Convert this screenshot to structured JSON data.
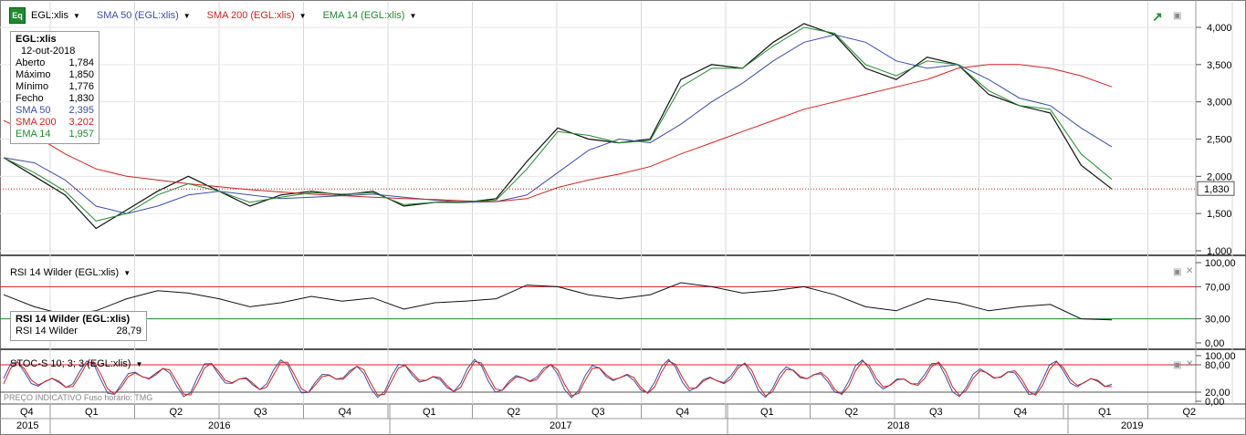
{
  "header": {
    "eq_label": "Eq",
    "symbol": "EGL:xlis",
    "sma50": "SMA 50 (EGL:xlis)",
    "sma200": "SMA 200 (EGL:xlis)",
    "ema14": "EMA 14 (EGL:xlis)",
    "colors": {
      "sma50": "#3b4fa3",
      "sma200": "#d42020",
      "ema14": "#1f8a2e"
    }
  },
  "info": {
    "title": "EGL:xlis",
    "date": "12-out-2018",
    "rows": [
      {
        "label": "Aberto",
        "value": "1,784",
        "color": "#000000"
      },
      {
        "label": "Máximo",
        "value": "1,850",
        "color": "#000000"
      },
      {
        "label": "Mínimo",
        "value": "1,776",
        "color": "#000000"
      },
      {
        "label": "Fecho",
        "value": "1,830",
        "color": "#000000"
      },
      {
        "label": "SMA 50",
        "value": "2,395",
        "color": "#3b4fa3"
      },
      {
        "label": "SMA 200",
        "value": "3,202",
        "color": "#d42020"
      },
      {
        "label": "EMA 14",
        "value": "1,957",
        "color": "#1f8a2e"
      }
    ]
  },
  "rsi": {
    "title": "RSI 14 Wilder (EGL:xlis)",
    "box_title": "RSI 14 Wilder (EGL:xlis)",
    "box_label": "RSI 14 Wilder",
    "box_value": "28,79"
  },
  "stoch": {
    "title": "STOC-S 10; 3; 3 (EGL:xlis)"
  },
  "footer": {
    "text": "PREÇO INDICATIVO   Fuso horário: TMG"
  },
  "chart_data": [
    {
      "type": "line",
      "name": "price",
      "x": [
        "2015-10",
        "2015-11",
        "2015-12",
        "2016-01",
        "2016-02",
        "2016-03",
        "2016-04",
        "2016-05",
        "2016-06",
        "2016-07",
        "2016-08",
        "2016-09",
        "2016-10",
        "2016-11",
        "2016-12",
        "2017-01",
        "2017-02",
        "2017-03",
        "2017-04",
        "2017-05",
        "2017-06",
        "2017-07",
        "2017-08",
        "2017-09",
        "2017-10",
        "2017-11",
        "2017-12",
        "2018-01",
        "2018-02",
        "2018-03",
        "2018-04",
        "2018-05",
        "2018-06",
        "2018-07",
        "2018-08",
        "2018-09",
        "2018-10"
      ],
      "series": [
        {
          "name": "EGL:xlis",
          "values": [
            2.25,
            2.0,
            1.75,
            1.3,
            1.55,
            1.8,
            2.0,
            1.8,
            1.6,
            1.75,
            1.8,
            1.75,
            1.8,
            1.6,
            1.65,
            1.65,
            1.7,
            2.2,
            2.65,
            2.5,
            2.45,
            2.5,
            3.3,
            3.5,
            3.45,
            3.8,
            4.05,
            3.9,
            3.45,
            3.3,
            3.6,
            3.5,
            3.1,
            2.95,
            2.85,
            2.15,
            1.83
          ]
        },
        {
          "name": "SMA 50 (EGL:xlis)",
          "values": [
            2.25,
            2.18,
            1.95,
            1.6,
            1.5,
            1.6,
            1.75,
            1.8,
            1.75,
            1.7,
            1.72,
            1.74,
            1.76,
            1.72,
            1.68,
            1.65,
            1.66,
            1.75,
            2.05,
            2.35,
            2.5,
            2.45,
            2.7,
            3.0,
            3.25,
            3.55,
            3.8,
            3.9,
            3.8,
            3.55,
            3.45,
            3.5,
            3.3,
            3.05,
            2.95,
            2.65,
            2.395
          ]
        },
        {
          "name": "SMA 200 (EGL:xlis)",
          "values": [
            2.75,
            2.55,
            2.3,
            2.1,
            2.0,
            1.95,
            1.9,
            1.86,
            1.82,
            1.79,
            1.76,
            1.74,
            1.72,
            1.7,
            1.69,
            1.67,
            1.66,
            1.7,
            1.85,
            1.95,
            2.03,
            2.13,
            2.3,
            2.45,
            2.6,
            2.75,
            2.9,
            3.0,
            3.1,
            3.2,
            3.3,
            3.45,
            3.5,
            3.5,
            3.45,
            3.35,
            3.202
          ]
        },
        {
          "name": "EMA 14 (EGL:xlis)",
          "values": [
            2.25,
            2.05,
            1.8,
            1.4,
            1.5,
            1.75,
            1.9,
            1.8,
            1.65,
            1.72,
            1.78,
            1.76,
            1.78,
            1.62,
            1.65,
            1.66,
            1.68,
            2.1,
            2.6,
            2.55,
            2.45,
            2.48,
            3.2,
            3.45,
            3.45,
            3.75,
            4.0,
            3.92,
            3.5,
            3.35,
            3.55,
            3.5,
            3.15,
            2.95,
            2.9,
            2.3,
            1.957
          ]
        }
      ],
      "ylim": [
        1.0,
        4.0
      ],
      "yticks": [
        "1,000",
        "1,500",
        "2,000",
        "2,500",
        "3,000",
        "3,500",
        "4,000"
      ],
      "last_value_label": "1,830"
    },
    {
      "type": "line",
      "name": "rsi",
      "series": [
        {
          "name": "RSI 14 Wilder (EGL:xlis)",
          "values": [
            60,
            45,
            35,
            40,
            55,
            65,
            62,
            55,
            45,
            50,
            58,
            52,
            56,
            42,
            50,
            52,
            55,
            72,
            70,
            60,
            55,
            60,
            75,
            70,
            62,
            65,
            70,
            60,
            45,
            40,
            55,
            50,
            40,
            45,
            48,
            30,
            28.79
          ]
        }
      ],
      "ylim": [
        0,
        100
      ],
      "yticks": [
        "0,00",
        "30,00",
        "70,00",
        "100,00"
      ],
      "levels": [
        30,
        70
      ]
    },
    {
      "type": "line",
      "name": "stochastic",
      "series": [
        {
          "name": "STOC-S 10; 3; 3 (EGL:xlis)"
        }
      ],
      "ylim": [
        0,
        100
      ],
      "yticks": [
        "0,00",
        "20,00",
        "80,00",
        "100,00"
      ],
      "levels": [
        20,
        80
      ]
    }
  ],
  "xaxis": {
    "quarters": [
      {
        "label": "Q4",
        "x": 0
      },
      {
        "label": "Q1",
        "x": 1
      },
      {
        "label": "Q2",
        "x": 2
      },
      {
        "label": "Q3",
        "x": 3
      },
      {
        "label": "Q4",
        "x": 4
      },
      {
        "label": "Q1",
        "x": 5
      },
      {
        "label": "Q2",
        "x": 6
      },
      {
        "label": "Q3",
        "x": 7
      },
      {
        "label": "Q4",
        "x": 8
      },
      {
        "label": "Q1",
        "x": 9
      },
      {
        "label": "Q2",
        "x": 10
      },
      {
        "label": "Q3",
        "x": 11
      },
      {
        "label": "Q4",
        "x": 12
      },
      {
        "label": "Q1",
        "x": 13
      },
      {
        "label": "Q2",
        "x": 14
      }
    ],
    "years": [
      "2015",
      "2016",
      "2017",
      "2018",
      "2019"
    ]
  }
}
